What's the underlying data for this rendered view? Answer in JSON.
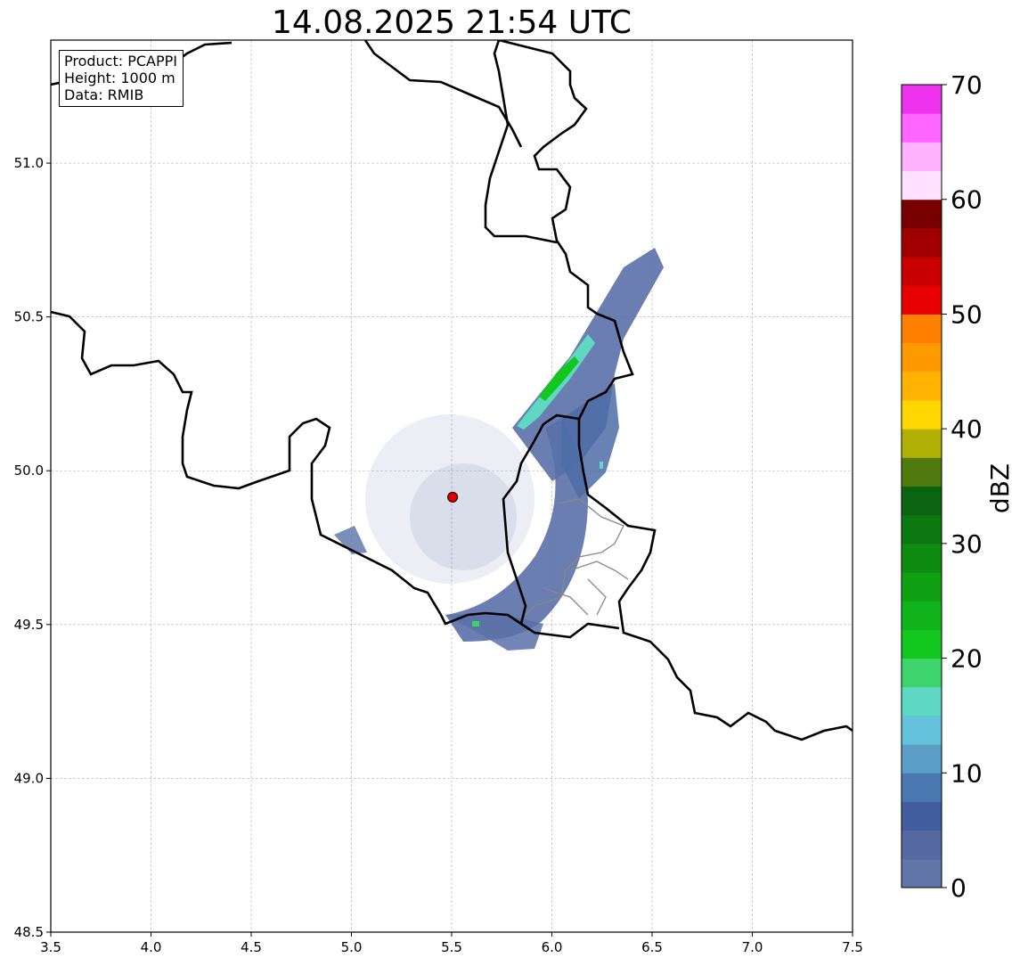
{
  "title": "14.08.2025 21:54 UTC",
  "info_box": {
    "product": "Product: PCAPPI",
    "height": "Height: 1000 m",
    "data": "Data: RMIB"
  },
  "x_axis": {
    "range": [
      3.5,
      7.5
    ],
    "ticks": [
      "3.5",
      "4.0",
      "4.5",
      "5.0",
      "5.5",
      "6.0",
      "6.5",
      "7.0",
      "7.5"
    ]
  },
  "y_axis": {
    "range": [
      48.5,
      51.4
    ],
    "ticks": [
      "48.5",
      "49.0",
      "49.5",
      "50.0",
      "50.5",
      "51.0"
    ]
  },
  "grid": true,
  "radar_site": {
    "lon": 5.505,
    "lat": 49.914,
    "color": "#e00000"
  },
  "colorbar": {
    "label": "dBZ",
    "range": [
      0,
      70
    ],
    "ticks": [
      "0",
      "10",
      "20",
      "30",
      "40",
      "50",
      "60",
      "70"
    ],
    "step": 2.5,
    "colors": [
      "#6275a8",
      "#5669a0",
      "#435e9e",
      "#4a78b0",
      "#5a9ec6",
      "#64c2dc",
      "#5ed8c2",
      "#3ed46c",
      "#12c81e",
      "#10b41a",
      "#0fa014",
      "#0e8c12",
      "#0c7810",
      "#0a6410",
      "#4e7a0e",
      "#b0b006",
      "#ffd700",
      "#ffb300",
      "#ff9900",
      "#ff7f00",
      "#e60000",
      "#c80000",
      "#a00000",
      "#780000",
      "#ffe0ff",
      "#ffb3ff",
      "#ff66ff",
      "#ee33ee"
    ]
  }
}
